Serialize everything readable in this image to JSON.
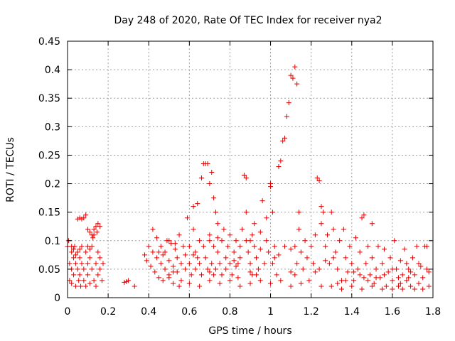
{
  "chart_data": {
    "type": "scatter",
    "title": "Day 248 of 2020, Rate Of TEC Index for receiver nya2",
    "xlabel": "GPS time / hours",
    "ylabel": "ROTI / TECUs",
    "xlim": [
      0,
      1.8
    ],
    "ylim": [
      0,
      0.45
    ],
    "x_ticks": [
      0,
      0.2,
      0.4,
      0.6,
      0.8,
      1,
      1.2,
      1.4,
      1.6,
      1.8
    ],
    "x_tick_labels": [
      "0",
      "0.2",
      "0.4",
      "0.6",
      "0.8",
      "1",
      "1.2",
      "1.4",
      "1.6",
      "1.8"
    ],
    "y_ticks": [
      0,
      0.05,
      0.1,
      0.15,
      0.2,
      0.25,
      0.3,
      0.35,
      0.4,
      0.45
    ],
    "y_tick_labels": [
      "0",
      "0.05",
      "0.1",
      "0.15",
      "0.2",
      "0.25",
      "0.3",
      "0.35",
      "0.4",
      "0.45"
    ],
    "grid": true,
    "marker": "+",
    "color": "#e00000",
    "series": [
      {
        "name": "nya2",
        "points": [
          [
            0.0,
            0.09
          ],
          [
            0.005,
            0.1
          ],
          [
            0.01,
            0.06
          ],
          [
            0.01,
            0.03
          ],
          [
            0.02,
            0.08
          ],
          [
            0.02,
            0.05
          ],
          [
            0.02,
            0.025
          ],
          [
            0.03,
            0.07
          ],
          [
            0.03,
            0.04
          ],
          [
            0.035,
            0.09
          ],
          [
            0.04,
            0.06
          ],
          [
            0.04,
            0.02
          ],
          [
            0.05,
            0.08
          ],
          [
            0.05,
            0.05
          ],
          [
            0.055,
            0.03
          ],
          [
            0.06,
            0.07
          ],
          [
            0.06,
            0.04
          ],
          [
            0.065,
            0.02
          ],
          [
            0.07,
            0.09
          ],
          [
            0.07,
            0.06
          ],
          [
            0.08,
            0.05
          ],
          [
            0.08,
            0.03
          ],
          [
            0.09,
            0.08
          ],
          [
            0.09,
            0.02
          ],
          [
            0.1,
            0.06
          ],
          [
            0.1,
            0.04
          ],
          [
            0.11,
            0.07
          ],
          [
            0.11,
            0.025
          ],
          [
            0.12,
            0.09
          ],
          [
            0.12,
            0.05
          ],
          [
            0.13,
            0.03
          ],
          [
            0.13,
            0.11
          ],
          [
            0.14,
            0.06
          ],
          [
            0.14,
            0.02
          ],
          [
            0.15,
            0.08
          ],
          [
            0.15,
            0.04
          ],
          [
            0.16,
            0.07
          ],
          [
            0.16,
            0.05
          ],
          [
            0.17,
            0.03
          ],
          [
            0.175,
            0.06
          ],
          [
            0.08,
            0.14
          ],
          [
            0.09,
            0.145
          ],
          [
            0.07,
            0.138
          ],
          [
            0.06,
            0.14
          ],
          [
            0.05,
            0.138
          ],
          [
            0.1,
            0.12
          ],
          [
            0.11,
            0.115
          ],
          [
            0.12,
            0.11
          ],
          [
            0.13,
            0.12
          ],
          [
            0.14,
            0.125
          ],
          [
            0.15,
            0.13
          ],
          [
            0.16,
            0.125
          ],
          [
            0.145,
            0.115
          ],
          [
            0.125,
            0.105
          ],
          [
            0.1,
            0.09
          ],
          [
            0.02,
            0.09
          ],
          [
            0.03,
            0.085
          ],
          [
            0.04,
            0.075
          ],
          [
            0.06,
            0.085
          ],
          [
            0.11,
            0.085
          ],
          [
            0.28,
            0.027
          ],
          [
            0.3,
            0.03
          ],
          [
            0.29,
            0.028
          ],
          [
            0.38,
            0.075
          ],
          [
            0.39,
            0.065
          ],
          [
            0.4,
            0.09
          ],
          [
            0.41,
            0.055
          ],
          [
            0.42,
            0.12
          ],
          [
            0.42,
            0.08
          ],
          [
            0.43,
            0.045
          ],
          [
            0.44,
            0.105
          ],
          [
            0.44,
            0.07
          ],
          [
            0.45,
            0.035
          ],
          [
            0.46,
            0.09
          ],
          [
            0.46,
            0.06
          ],
          [
            0.47,
            0.03
          ],
          [
            0.48,
            0.08
          ],
          [
            0.48,
            0.05
          ],
          [
            0.49,
            0.1
          ],
          [
            0.5,
            0.065
          ],
          [
            0.5,
            0.035
          ],
          [
            0.51,
            0.095
          ],
          [
            0.52,
            0.055
          ],
          [
            0.52,
            0.025
          ],
          [
            0.53,
            0.085
          ],
          [
            0.54,
            0.07
          ],
          [
            0.54,
            0.045
          ],
          [
            0.55,
            0.11
          ],
          [
            0.56,
            0.06
          ],
          [
            0.56,
            0.03
          ],
          [
            0.57,
            0.09
          ],
          [
            0.58,
            0.05
          ],
          [
            0.58,
            0.075
          ],
          [
            0.59,
            0.14
          ],
          [
            0.6,
            0.09
          ],
          [
            0.6,
            0.06
          ],
          [
            0.61,
            0.04
          ],
          [
            0.62,
            0.12
          ],
          [
            0.62,
            0.16
          ],
          [
            0.63,
            0.08
          ],
          [
            0.63,
            0.05
          ],
          [
            0.64,
            0.165
          ],
          [
            0.65,
            0.1
          ],
          [
            0.65,
            0.06
          ],
          [
            0.66,
            0.21
          ],
          [
            0.66,
            0.04
          ],
          [
            0.67,
            0.235
          ],
          [
            0.67,
            0.09
          ],
          [
            0.68,
            0.235
          ],
          [
            0.68,
            0.07
          ],
          [
            0.69,
            0.05
          ],
          [
            0.69,
            0.235
          ],
          [
            0.7,
            0.2
          ],
          [
            0.7,
            0.11
          ],
          [
            0.71,
            0.06
          ],
          [
            0.71,
            0.22
          ],
          [
            0.72,
            0.175
          ],
          [
            0.72,
            0.09
          ],
          [
            0.73,
            0.05
          ],
          [
            0.73,
            0.15
          ],
          [
            0.74,
            0.13
          ],
          [
            0.74,
            0.08
          ],
          [
            0.75,
            0.06
          ],
          [
            0.76,
            0.1
          ],
          [
            0.76,
            0.04
          ],
          [
            0.77,
            0.12
          ],
          [
            0.78,
            0.07
          ],
          [
            0.78,
            0.05
          ],
          [
            0.79,
            0.09
          ],
          [
            0.8,
            0.11
          ],
          [
            0.8,
            0.06
          ],
          [
            0.81,
            0.04
          ],
          [
            0.82,
            0.08
          ],
          [
            0.83,
            0.1
          ],
          [
            0.83,
            0.055
          ],
          [
            0.84,
            0.035
          ],
          [
            0.85,
            0.09
          ],
          [
            0.85,
            0.07
          ],
          [
            0.86,
            0.12
          ],
          [
            0.87,
            0.215
          ],
          [
            0.88,
            0.21
          ],
          [
            0.88,
            0.15
          ],
          [
            0.89,
            0.08
          ],
          [
            0.9,
            0.06
          ],
          [
            0.9,
            0.1
          ],
          [
            0.91,
            0.04
          ],
          [
            0.92,
            0.13
          ],
          [
            0.92,
            0.09
          ],
          [
            0.93,
            0.07
          ],
          [
            0.94,
            0.05
          ],
          [
            0.95,
            0.115
          ],
          [
            0.95,
            0.085
          ],
          [
            0.96,
            0.17
          ],
          [
            0.97,
            0.06
          ],
          [
            0.98,
            0.14
          ],
          [
            0.98,
            0.1
          ],
          [
            0.99,
            0.08
          ],
          [
            1.0,
            0.2
          ],
          [
            1.0,
            0.195
          ],
          [
            1.01,
            0.15
          ],
          [
            1.01,
            0.06
          ],
          [
            1.02,
            0.09
          ],
          [
            1.03,
            0.04
          ],
          [
            1.04,
            0.23
          ],
          [
            1.05,
            0.24
          ],
          [
            1.06,
            0.275
          ],
          [
            1.07,
            0.28
          ],
          [
            1.08,
            0.318
          ],
          [
            1.09,
            0.342
          ],
          [
            1.1,
            0.39
          ],
          [
            1.11,
            0.385
          ],
          [
            1.12,
            0.405
          ],
          [
            1.13,
            0.375
          ],
          [
            1.12,
            0.09
          ],
          [
            1.13,
            0.06
          ],
          [
            1.14,
            0.15
          ],
          [
            1.14,
            0.12
          ],
          [
            1.15,
            0.08
          ],
          [
            1.16,
            0.05
          ],
          [
            1.17,
            0.1
          ],
          [
            1.18,
            0.07
          ],
          [
            1.19,
            0.03
          ],
          [
            1.2,
            0.09
          ],
          [
            1.21,
            0.06
          ],
          [
            1.22,
            0.11
          ],
          [
            1.23,
            0.21
          ],
          [
            1.24,
            0.205
          ],
          [
            1.25,
            0.16
          ],
          [
            1.25,
            0.13
          ],
          [
            1.26,
            0.15
          ],
          [
            1.27,
            0.09
          ],
          [
            1.28,
            0.11
          ],
          [
            1.29,
            0.06
          ],
          [
            1.3,
            0.15
          ],
          [
            1.31,
            0.12
          ],
          [
            1.32,
            0.08
          ],
          [
            1.33,
            0.05
          ],
          [
            1.34,
            0.1
          ],
          [
            1.35,
            0.03
          ],
          [
            1.36,
            0.12
          ],
          [
            1.37,
            0.07
          ],
          [
            1.38,
            0.045
          ],
          [
            1.39,
            0.09
          ],
          [
            1.4,
            0.06
          ],
          [
            1.41,
            0.03
          ],
          [
            1.42,
            0.105
          ],
          [
            1.43,
            0.05
          ],
          [
            1.44,
            0.08
          ],
          [
            1.45,
            0.14
          ],
          [
            1.46,
            0.145
          ],
          [
            1.46,
            0.035
          ],
          [
            1.47,
            0.06
          ],
          [
            1.48,
            0.09
          ],
          [
            1.49,
            0.04
          ],
          [
            1.5,
            0.13
          ],
          [
            1.5,
            0.07
          ],
          [
            1.51,
            0.025
          ],
          [
            1.52,
            0.05
          ],
          [
            1.53,
            0.09
          ],
          [
            1.54,
            0.035
          ],
          [
            1.55,
            0.06
          ],
          [
            1.56,
            0.085
          ],
          [
            1.57,
            0.02
          ],
          [
            1.58,
            0.045
          ],
          [
            1.59,
            0.07
          ],
          [
            1.6,
            0.03
          ],
          [
            1.61,
            0.1
          ],
          [
            1.62,
            0.05
          ],
          [
            1.63,
            0.02
          ],
          [
            1.64,
            0.065
          ],
          [
            1.65,
            0.04
          ],
          [
            1.66,
            0.085
          ],
          [
            1.67,
            0.03
          ],
          [
            1.68,
            0.05
          ],
          [
            1.69,
            0.02
          ],
          [
            1.7,
            0.07
          ],
          [
            1.71,
            0.04
          ],
          [
            1.72,
            0.09
          ],
          [
            1.73,
            0.025
          ],
          [
            1.74,
            0.055
          ],
          [
            1.75,
            0.035
          ],
          [
            1.76,
            0.09
          ],
          [
            1.77,
            0.05
          ],
          [
            1.78,
            0.02
          ],
          [
            1.78,
            0.045
          ],
          [
            1.77,
            0.09
          ],
          [
            1.75,
            0.015
          ],
          [
            1.73,
            0.06
          ],
          [
            1.71,
            0.015
          ],
          [
            1.69,
            0.045
          ],
          [
            1.67,
            0.06
          ],
          [
            1.65,
            0.015
          ],
          [
            1.63,
            0.035
          ],
          [
            0.33,
            0.02
          ],
          [
            0.55,
            0.02
          ],
          [
            0.6,
            0.025
          ],
          [
            0.65,
            0.02
          ],
          [
            0.7,
            0.03
          ],
          [
            0.75,
            0.025
          ],
          [
            0.8,
            0.03
          ],
          [
            0.85,
            0.02
          ],
          [
            0.9,
            0.025
          ],
          [
            0.95,
            0.03
          ],
          [
            1.0,
            0.025
          ],
          [
            1.05,
            0.03
          ],
          [
            1.1,
            0.02
          ],
          [
            1.15,
            0.025
          ],
          [
            1.25,
            0.02
          ],
          [
            1.3,
            0.02
          ],
          [
            1.35,
            0.015
          ],
          [
            1.4,
            0.02
          ],
          [
            1.45,
            0.015
          ],
          [
            1.5,
            0.02
          ],
          [
            1.55,
            0.015
          ],
          [
            1.6,
            0.015
          ],
          [
            0.5,
            0.04
          ],
          [
            0.52,
            0.045
          ],
          [
            0.7,
            0.045
          ],
          [
            0.72,
            0.04
          ],
          [
            0.9,
            0.045
          ],
          [
            0.93,
            0.04
          ],
          [
            1.1,
            0.045
          ],
          [
            1.12,
            0.04
          ],
          [
            0.45,
            0.08
          ],
          [
            0.47,
            0.075
          ],
          [
            0.62,
            0.075
          ],
          [
            0.64,
            0.07
          ],
          [
            0.82,
            0.065
          ],
          [
            0.84,
            0.06
          ],
          [
            1.02,
            0.07
          ],
          [
            1.04,
            0.075
          ],
          [
            1.22,
            0.045
          ],
          [
            1.24,
            0.05
          ],
          [
            0.5,
            0.1
          ],
          [
            0.53,
            0.095
          ],
          [
            0.7,
            0.1
          ],
          [
            0.74,
            0.105
          ],
          [
            0.88,
            0.1
          ],
          [
            0.91,
            0.11
          ],
          [
            1.07,
            0.09
          ],
          [
            1.1,
            0.085
          ],
          [
            1.27,
            0.065
          ],
          [
            1.31,
            0.07
          ],
          [
            1.33,
            0.025
          ],
          [
            1.37,
            0.03
          ],
          [
            1.41,
            0.045
          ],
          [
            1.44,
            0.04
          ],
          [
            1.48,
            0.03
          ],
          [
            1.52,
            0.035
          ],
          [
            1.56,
            0.04
          ],
          [
            1.6,
            0.05
          ],
          [
            1.64,
            0.025
          ],
          [
            1.68,
            0.035
          ]
        ]
      }
    ]
  }
}
